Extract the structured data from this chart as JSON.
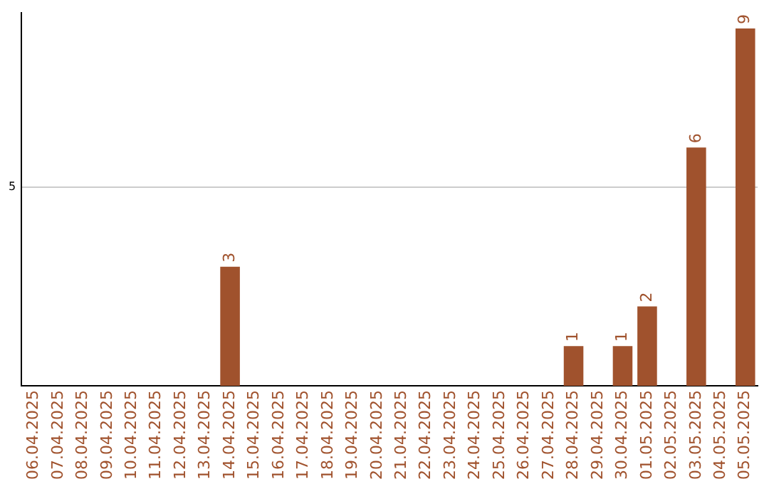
{
  "chart_data": {
    "type": "bar",
    "categories": [
      "06.04.2025",
      "07.04.2025",
      "08.04.2025",
      "09.04.2025",
      "10.04.2025",
      "11.04.2025",
      "12.04.2025",
      "13.04.2025",
      "14.04.2025",
      "15.04.2025",
      "16.04.2025",
      "17.04.2025",
      "18.04.2025",
      "19.04.2025",
      "20.04.2025",
      "21.04.2025",
      "22.04.2025",
      "23.04.2025",
      "24.04.2025",
      "25.04.2025",
      "26.04.2025",
      "27.04.2025",
      "28.04.2025",
      "29.04.2025",
      "30.04.2025",
      "01.05.2025",
      "02.05.2025",
      "03.05.2025",
      "04.05.2025",
      "05.05.2025"
    ],
    "values": [
      0,
      0,
      0,
      0,
      0,
      0,
      0,
      0,
      3,
      0,
      0,
      0,
      0,
      0,
      0,
      0,
      0,
      0,
      0,
      0,
      0,
      0,
      1,
      0,
      1,
      2,
      0,
      6,
      0,
      9
    ],
    "value_labels": [
      null,
      null,
      null,
      null,
      null,
      null,
      null,
      null,
      "3",
      null,
      null,
      null,
      null,
      null,
      null,
      null,
      null,
      null,
      null,
      null,
      null,
      null,
      "1",
      null,
      "1",
      "2",
      null,
      "6",
      null,
      "9"
    ],
    "color": "#a0522d",
    "ylim": [
      0,
      9.4
    ],
    "yticks": [
      5
    ],
    "grid": "y",
    "legend": false
  }
}
